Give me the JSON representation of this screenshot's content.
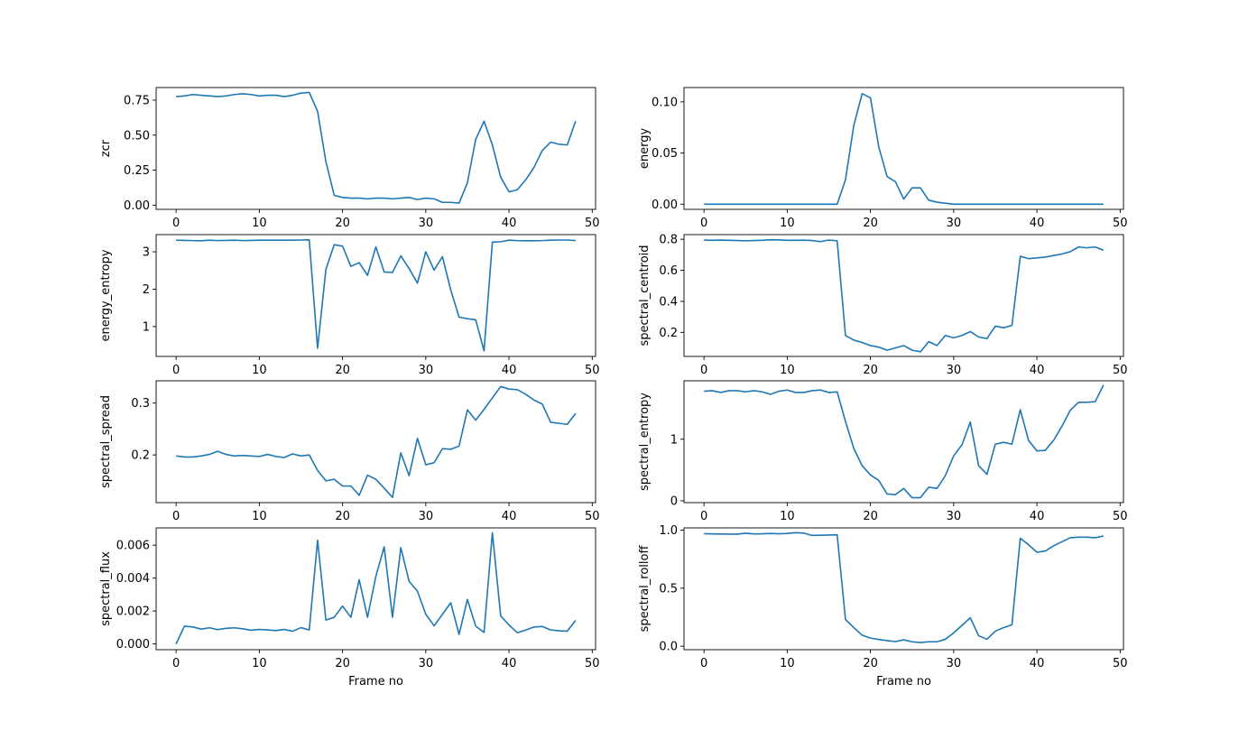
{
  "figure": {
    "background": "#ffffff",
    "line_color": "#1f77b4"
  },
  "chart_data": [
    {
      "type": "line",
      "ylabel": "zcr",
      "xlabel": "",
      "xlim": [
        -2.4,
        50.4
      ],
      "ylim": [
        -0.03,
        0.84
      ],
      "xticks": [
        0,
        10,
        20,
        30,
        40,
        50
      ],
      "yticks": [
        0.0,
        0.25,
        0.5,
        0.75
      ],
      "ytick_labels": [
        "0.00",
        "0.25",
        "0.50",
        "0.75"
      ],
      "x": [
        0,
        1,
        2,
        3,
        4,
        5,
        6,
        7,
        8,
        9,
        10,
        11,
        12,
        13,
        14,
        15,
        16,
        17,
        18,
        19,
        20,
        21,
        22,
        23,
        24,
        25,
        26,
        27,
        28,
        29,
        30,
        31,
        32,
        33,
        34,
        35,
        36,
        37,
        38,
        39,
        40,
        41,
        42,
        43,
        44,
        45,
        46,
        47,
        48
      ],
      "values": [
        0.775,
        0.78,
        0.79,
        0.785,
        0.78,
        0.775,
        0.78,
        0.79,
        0.795,
        0.79,
        0.78,
        0.785,
        0.785,
        0.775,
        0.785,
        0.8,
        0.805,
        0.67,
        0.31,
        0.07,
        0.055,
        0.05,
        0.05,
        0.045,
        0.05,
        0.05,
        0.045,
        0.05,
        0.055,
        0.04,
        0.05,
        0.045,
        0.02,
        0.02,
        0.015,
        0.16,
        0.47,
        0.6,
        0.43,
        0.2,
        0.095,
        0.11,
        0.18,
        0.27,
        0.39,
        0.45,
        0.435,
        0.43,
        0.6
      ]
    },
    {
      "type": "line",
      "ylabel": "energy",
      "xlabel": "",
      "xlim": [
        -2.4,
        50.4
      ],
      "ylim": [
        -0.005,
        0.114
      ],
      "xticks": [
        0,
        10,
        20,
        30,
        40,
        50
      ],
      "yticks": [
        0.0,
        0.05,
        0.1
      ],
      "ytick_labels": [
        "0.00",
        "0.05",
        "0.10"
      ],
      "x": [
        0,
        1,
        2,
        3,
        4,
        5,
        6,
        7,
        8,
        9,
        10,
        11,
        12,
        13,
        14,
        15,
        16,
        17,
        18,
        19,
        20,
        21,
        22,
        23,
        24,
        25,
        26,
        27,
        28,
        29,
        30,
        31,
        32,
        33,
        34,
        35,
        36,
        37,
        38,
        39,
        40,
        41,
        42,
        43,
        44,
        45,
        46,
        47,
        48
      ],
      "values": [
        0,
        0,
        0,
        0,
        0,
        0,
        0,
        0,
        0,
        0,
        0,
        0,
        0,
        0,
        0,
        0,
        0,
        0.024,
        0.077,
        0.108,
        0.104,
        0.056,
        0.027,
        0.022,
        0.005,
        0.016,
        0.016,
        0.004,
        0.002,
        0.001,
        0,
        0,
        0,
        0,
        0,
        0,
        0,
        0,
        0,
        0,
        0,
        0,
        0,
        0,
        0,
        0,
        0,
        0,
        0
      ]
    },
    {
      "type": "line",
      "ylabel": "energy_entropy",
      "xlabel": "",
      "xlim": [
        -2.4,
        50.4
      ],
      "ylim": [
        0.2,
        3.46
      ],
      "xticks": [
        0,
        10,
        20,
        30,
        40,
        50
      ],
      "yticks": [
        1,
        2,
        3
      ],
      "ytick_labels": [
        "1",
        "2",
        "3"
      ],
      "x": [
        0,
        1,
        2,
        3,
        4,
        5,
        6,
        7,
        8,
        9,
        10,
        11,
        12,
        13,
        14,
        15,
        16,
        17,
        18,
        19,
        20,
        21,
        22,
        23,
        24,
        25,
        26,
        27,
        28,
        29,
        30,
        31,
        32,
        33,
        34,
        35,
        36,
        37,
        38,
        39,
        40,
        41,
        42,
        43,
        44,
        45,
        46,
        47,
        48
      ],
      "values": [
        3.31,
        3.305,
        3.3,
        3.295,
        3.31,
        3.3,
        3.305,
        3.31,
        3.3,
        3.305,
        3.31,
        3.31,
        3.31,
        3.31,
        3.31,
        3.315,
        3.32,
        0.42,
        2.53,
        3.19,
        3.15,
        2.61,
        2.71,
        2.37,
        3.13,
        2.46,
        2.45,
        2.89,
        2.55,
        2.16,
        3.0,
        2.51,
        2.87,
        1.98,
        1.25,
        1.21,
        1.18,
        0.35,
        3.26,
        3.27,
        3.31,
        3.3,
        3.295,
        3.295,
        3.3,
        3.31,
        3.315,
        3.315,
        3.3
      ]
    },
    {
      "type": "line",
      "ylabel": "spectral_centroid",
      "xlabel": "",
      "xlim": [
        -2.4,
        50.4
      ],
      "ylim": [
        0.045,
        0.83
      ],
      "xticks": [
        0,
        10,
        20,
        30,
        40,
        50
      ],
      "yticks": [
        0.2,
        0.4,
        0.6,
        0.8
      ],
      "ytick_labels": [
        "0.2",
        "0.4",
        "0.6",
        "0.8"
      ],
      "x": [
        0,
        1,
        2,
        3,
        4,
        5,
        6,
        7,
        8,
        9,
        10,
        11,
        12,
        13,
        14,
        15,
        16,
        17,
        18,
        19,
        20,
        21,
        22,
        23,
        24,
        25,
        26,
        27,
        28,
        29,
        30,
        31,
        32,
        33,
        34,
        35,
        36,
        37,
        38,
        39,
        40,
        41,
        42,
        43,
        44,
        45,
        46,
        47,
        48
      ],
      "values": [
        0.795,
        0.793,
        0.795,
        0.793,
        0.792,
        0.79,
        0.792,
        0.793,
        0.797,
        0.796,
        0.793,
        0.793,
        0.794,
        0.792,
        0.785,
        0.795,
        0.79,
        0.18,
        0.15,
        0.135,
        0.115,
        0.105,
        0.085,
        0.1,
        0.115,
        0.085,
        0.075,
        0.14,
        0.115,
        0.18,
        0.165,
        0.18,
        0.205,
        0.17,
        0.16,
        0.24,
        0.23,
        0.245,
        0.69,
        0.675,
        0.68,
        0.685,
        0.695,
        0.705,
        0.72,
        0.75,
        0.745,
        0.75,
        0.73
      ]
    },
    {
      "type": "line",
      "ylabel": "spectral_spread",
      "xlabel": "",
      "xlim": [
        -2.4,
        50.4
      ],
      "ylim": [
        0.108,
        0.343
      ],
      "xticks": [
        0,
        10,
        20,
        30,
        40,
        50
      ],
      "yticks": [
        0.2,
        0.3
      ],
      "ytick_labels": [
        "0.2",
        "0.3"
      ],
      "x": [
        0,
        1,
        2,
        3,
        4,
        5,
        6,
        7,
        8,
        9,
        10,
        11,
        12,
        13,
        14,
        15,
        16,
        17,
        18,
        19,
        20,
        21,
        22,
        23,
        24,
        25,
        26,
        27,
        28,
        29,
        30,
        31,
        32,
        33,
        34,
        35,
        36,
        37,
        38,
        39,
        40,
        41,
        42,
        43,
        44,
        45,
        46,
        47,
        48
      ],
      "values": [
        0.198,
        0.196,
        0.196,
        0.198,
        0.201,
        0.207,
        0.201,
        0.198,
        0.199,
        0.198,
        0.197,
        0.201,
        0.197,
        0.195,
        0.202,
        0.198,
        0.2,
        0.17,
        0.15,
        0.153,
        0.14,
        0.14,
        0.122,
        0.161,
        0.153,
        0.136,
        0.118,
        0.204,
        0.16,
        0.232,
        0.181,
        0.185,
        0.212,
        0.211,
        0.217,
        0.287,
        0.267,
        0.288,
        0.31,
        0.332,
        0.327,
        0.326,
        0.317,
        0.306,
        0.298,
        0.263,
        0.261,
        0.259,
        0.28
      ]
    },
    {
      "type": "line",
      "ylabel": "spectral_entropy",
      "xlabel": "",
      "xlim": [
        -2.4,
        50.4
      ],
      "ylim": [
        -0.03,
        1.95
      ],
      "xticks": [
        0,
        10,
        20,
        30,
        40,
        50
      ],
      "yticks": [
        0,
        1
      ],
      "ytick_labels": [
        "0",
        "1"
      ],
      "x": [
        0,
        1,
        2,
        3,
        4,
        5,
        6,
        7,
        8,
        9,
        10,
        11,
        12,
        13,
        14,
        15,
        16,
        17,
        18,
        19,
        20,
        21,
        22,
        23,
        24,
        25,
        26,
        27,
        28,
        29,
        30,
        31,
        32,
        33,
        34,
        35,
        36,
        37,
        38,
        39,
        40,
        41,
        42,
        43,
        44,
        45,
        46,
        47,
        48
      ],
      "values": [
        1.78,
        1.79,
        1.76,
        1.79,
        1.79,
        1.77,
        1.79,
        1.77,
        1.73,
        1.78,
        1.8,
        1.76,
        1.76,
        1.79,
        1.8,
        1.76,
        1.77,
        1.29,
        0.85,
        0.57,
        0.42,
        0.33,
        0.11,
        0.1,
        0.2,
        0.05,
        0.05,
        0.22,
        0.2,
        0.41,
        0.73,
        0.91,
        1.28,
        0.57,
        0.43,
        0.92,
        0.95,
        0.92,
        1.48,
        0.98,
        0.81,
        0.82,
        0.98,
        1.21,
        1.47,
        1.6,
        1.6,
        1.61,
        1.88
      ]
    },
    {
      "type": "line",
      "ylabel": "spectral_flux",
      "xlabel": "Frame no",
      "xlim": [
        -2.4,
        50.4
      ],
      "ylim": [
        -0.00035,
        0.00705
      ],
      "xticks": [
        0,
        10,
        20,
        30,
        40,
        50
      ],
      "yticks": [
        0.0,
        0.002,
        0.004,
        0.006
      ],
      "ytick_labels": [
        "0.000",
        "0.002",
        "0.004",
        "0.006"
      ],
      "x": [
        0,
        1,
        2,
        3,
        4,
        5,
        6,
        7,
        8,
        9,
        10,
        11,
        12,
        13,
        14,
        15,
        16,
        17,
        18,
        19,
        20,
        21,
        22,
        23,
        24,
        25,
        26,
        27,
        28,
        29,
        30,
        31,
        32,
        33,
        34,
        35,
        36,
        37,
        38,
        39,
        40,
        41,
        42,
        43,
        44,
        45,
        46,
        47,
        48
      ],
      "values": [
        0.0,
        0.00108,
        0.00103,
        0.0009,
        0.00098,
        0.00087,
        0.00095,
        0.00098,
        0.00092,
        0.00083,
        0.00088,
        0.00085,
        0.00081,
        0.00088,
        0.00077,
        0.00099,
        0.00085,
        0.0063,
        0.00145,
        0.00162,
        0.0023,
        0.00162,
        0.0039,
        0.00162,
        0.0041,
        0.0059,
        0.00162,
        0.00585,
        0.0038,
        0.0032,
        0.0018,
        0.0011,
        0.0018,
        0.0025,
        0.00058,
        0.0027,
        0.00108,
        0.0007,
        0.00675,
        0.0017,
        0.00115,
        0.00068,
        0.00084,
        0.00103,
        0.00106,
        0.00085,
        0.0008,
        0.00078,
        0.00143
      ]
    },
    {
      "type": "line",
      "ylabel": "spectral_rolloff",
      "xlabel": "Frame no",
      "xlim": [
        -2.4,
        50.4
      ],
      "ylim": [
        -0.03,
        1.02
      ],
      "xticks": [
        0,
        10,
        20,
        30,
        40,
        50
      ],
      "yticks": [
        0.0,
        0.5,
        1.0
      ],
      "ytick_labels": [
        "0.0",
        "0.5",
        "1.0"
      ],
      "x": [
        0,
        1,
        2,
        3,
        4,
        5,
        6,
        7,
        8,
        9,
        10,
        11,
        12,
        13,
        14,
        15,
        16,
        17,
        18,
        19,
        20,
        21,
        22,
        23,
        24,
        25,
        26,
        27,
        28,
        29,
        30,
        31,
        32,
        33,
        34,
        35,
        36,
        37,
        38,
        39,
        40,
        41,
        42,
        43,
        44,
        45,
        46,
        47,
        48
      ],
      "values": [
        0.97,
        0.968,
        0.967,
        0.966,
        0.966,
        0.974,
        0.968,
        0.969,
        0.972,
        0.969,
        0.972,
        0.979,
        0.974,
        0.955,
        0.956,
        0.958,
        0.96,
        0.23,
        0.16,
        0.095,
        0.07,
        0.058,
        0.048,
        0.04,
        0.055,
        0.038,
        0.032,
        0.038,
        0.038,
        0.06,
        0.115,
        0.18,
        0.245,
        0.09,
        0.06,
        0.13,
        0.16,
        0.185,
        0.93,
        0.875,
        0.81,
        0.82,
        0.865,
        0.9,
        0.935,
        0.94,
        0.94,
        0.935,
        0.95
      ]
    }
  ]
}
